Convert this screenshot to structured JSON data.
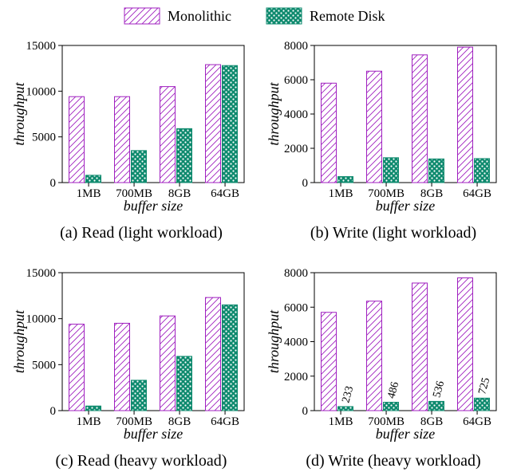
{
  "legend": [
    {
      "name": "Monolithic",
      "color": "#a020c0",
      "pattern": "diagonal-hatch"
    },
    {
      "name": "Remote Disk",
      "color": "#0e8a6e",
      "pattern": "dots"
    }
  ],
  "chart_data": [
    {
      "type": "bar",
      "caption": "(a) Read (light workload)",
      "xlabel": "buffer size",
      "ylabel": "throughput",
      "categories": [
        "1MB",
        "700MB",
        "8GB",
        "64GB"
      ],
      "ylim": [
        0,
        15000
      ],
      "yticks": [
        "0",
        "5000",
        "10000",
        "15000"
      ],
      "series": [
        {
          "name": "Monolithic",
          "values": [
            9400,
            9400,
            10500,
            12900
          ]
        },
        {
          "name": "Remote Disk",
          "values": [
            800,
            3500,
            5900,
            12800
          ]
        }
      ],
      "data_labels": [],
      "grid": false
    },
    {
      "type": "bar",
      "caption": "(b) Write (light workload)",
      "xlabel": "buffer size",
      "ylabel": "throughput",
      "categories": [
        "1MB",
        "700MB",
        "8GB",
        "64GB"
      ],
      "ylim": [
        0,
        8000
      ],
      "yticks": [
        "0",
        "2000",
        "4000",
        "6000",
        "8000"
      ],
      "series": [
        {
          "name": "Monolithic",
          "values": [
            5800,
            6500,
            7450,
            7900
          ]
        },
        {
          "name": "Remote Disk",
          "values": [
            350,
            1450,
            1380,
            1400
          ]
        }
      ],
      "data_labels": [],
      "grid": false
    },
    {
      "type": "bar",
      "caption": "(c) Read (heavy workload)",
      "xlabel": "buffer size",
      "ylabel": "throughput",
      "categories": [
        "1MB",
        "700MB",
        "8GB",
        "64GB"
      ],
      "ylim": [
        0,
        15000
      ],
      "yticks": [
        "0",
        "5000",
        "10000",
        "15000"
      ],
      "series": [
        {
          "name": "Monolithic",
          "values": [
            9400,
            9500,
            10300,
            12300
          ]
        },
        {
          "name": "Remote Disk",
          "values": [
            500,
            3300,
            5900,
            11500
          ]
        }
      ],
      "data_labels": [],
      "grid": false
    },
    {
      "type": "bar",
      "caption": "(d) Write (heavy workload)",
      "xlabel": "buffer size",
      "ylabel": "throughput",
      "categories": [
        "1MB",
        "700MB",
        "8GB",
        "64GB"
      ],
      "ylim": [
        0,
        8000
      ],
      "yticks": [
        "0",
        "2000",
        "4000",
        "6000",
        "8000"
      ],
      "series": [
        {
          "name": "Monolithic",
          "values": [
            5700,
            6350,
            7400,
            7700
          ]
        },
        {
          "name": "Remote Disk",
          "values": [
            233,
            486,
            536,
            725
          ]
        }
      ],
      "data_labels": [
        "233",
        "486",
        "536",
        "725"
      ],
      "grid": false
    }
  ]
}
